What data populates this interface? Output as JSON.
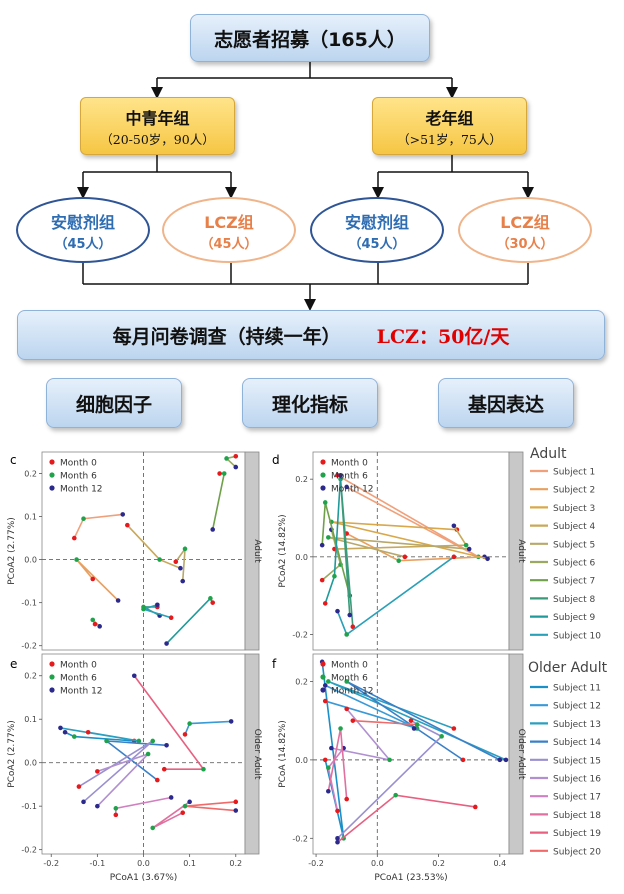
{
  "flow": {
    "recruit": "志愿者招募（165人）",
    "middle_group": {
      "title": "中青年组",
      "sub": "（20-50岁，90人）"
    },
    "old_group": {
      "title": "老年组",
      "sub": "（>51岁，75人）"
    },
    "arms": [
      {
        "name": "安慰剂组",
        "count": "（45人）"
      },
      {
        "name": "LCZ组",
        "count": "（45人）"
      },
      {
        "name": "安慰剂组",
        "count": "（45人）"
      },
      {
        "name": "LCZ组",
        "count": "（30人）"
      }
    ],
    "survey": "每月问卷调查（持续一年）",
    "dose": "LCZ：50亿/天",
    "outcomes": [
      "细胞因子",
      "理化指标",
      "基因表达"
    ]
  },
  "colors": {
    "month0": "#e41a1c",
    "month6": "#1fa34a",
    "month12": "#2b2a8c"
  },
  "chart_data": [
    {
      "type": "scatter",
      "panel": "c",
      "strip": "Adult",
      "xlabel": "",
      "ylabel": "PCoA2 (2.77%)",
      "xlim": [
        -0.22,
        0.22
      ],
      "ylim": [
        -0.21,
        0.25
      ],
      "yticks": [
        "-0.2",
        "-0.1",
        "0.0",
        "0.1",
        "0.2"
      ],
      "legend": [
        "Month 0",
        "Month 6",
        "Month 12"
      ],
      "subjects": [
        {
          "m0": [
            -0.15,
            0.05
          ],
          "m6": [
            -0.13,
            0.095
          ],
          "m12": [
            -0.045,
            0.105
          ]
        },
        {
          "m0": [
            -0.11,
            -0.045
          ],
          "m6": [
            -0.145,
            0.0
          ],
          "m12": [
            -0.055,
            -0.095
          ]
        },
        {
          "m0": [
            -0.105,
            -0.15
          ],
          "m6": [
            -0.11,
            -0.14
          ],
          "m12": [
            -0.095,
            -0.155
          ]
        },
        {
          "m0": [
            -0.035,
            0.08
          ],
          "m6": [
            0.035,
            0.0
          ],
          "m12": [
            0.08,
            -0.02
          ]
        },
        {
          "m0": [
            0.07,
            -0.005
          ],
          "m6": [
            0.09,
            0.025
          ],
          "m12": [
            0.085,
            -0.05
          ]
        },
        {
          "m0": [
            0.2,
            0.24
          ],
          "m6": [
            0.18,
            0.235
          ],
          "m12": [
            0.2,
            0.215
          ]
        },
        {
          "m0": [
            0.165,
            0.2
          ],
          "m6": [
            0.175,
            0.2
          ],
          "m12": [
            0.15,
            0.07
          ]
        },
        {
          "m0": [
            0.03,
            -0.11
          ],
          "m6": [
            0.0,
            -0.11
          ],
          "m12": [
            0.035,
            -0.13
          ]
        },
        {
          "m0": [
            0.15,
            -0.1
          ],
          "m6": [
            0.145,
            -0.09
          ],
          "m12": [
            0.05,
            -0.195
          ]
        },
        {
          "m0": [
            0.06,
            -0.135
          ],
          "m6": [
            0.0,
            -0.115
          ],
          "m12": [
            0.03,
            -0.105
          ]
        }
      ]
    },
    {
      "type": "scatter",
      "panel": "d",
      "strip": "Adult",
      "xlabel": "",
      "ylabel": "PCoA2 (14.82%)",
      "xlim": [
        -0.21,
        0.43
      ],
      "ylim": [
        -0.24,
        0.27
      ],
      "yticks": [
        "-0.2",
        "0.0",
        "0.2"
      ],
      "legend": [
        "Month 0",
        "Month 6",
        "Month 12"
      ],
      "subjects": [
        {
          "m0": [
            -0.13,
            0.21
          ],
          "m6": [
            0.33,
            0.0
          ],
          "m12": [
            -0.1,
            0.18
          ]
        },
        {
          "m0": [
            -0.1,
            0.06
          ],
          "m6": [
            0.07,
            -0.01
          ],
          "m12": [
            0.35,
            0.0
          ]
        },
        {
          "m0": [
            0.26,
            0.07
          ],
          "m6": [
            -0.15,
            0.09
          ],
          "m12": [
            0.36,
            -0.005
          ]
        },
        {
          "m0": [
            -0.14,
            0.02
          ],
          "m6": [
            0.29,
            0.03
          ],
          "m12": [
            0.25,
            0.08
          ]
        },
        {
          "m0": [
            0.09,
            0.0
          ],
          "m6": [
            -0.16,
            0.05
          ],
          "m12": [
            0.3,
            0.02
          ]
        },
        {
          "m0": [
            -0.18,
            -0.06
          ],
          "m6": [
            -0.12,
            -0.02
          ],
          "m12": [
            -0.15,
            0.07
          ]
        },
        {
          "m0": [
            -0.09,
            -0.1
          ],
          "m6": [
            -0.17,
            0.14
          ],
          "m12": [
            -0.18,
            0.03
          ]
        },
        {
          "m0": [
            -0.08,
            -0.18
          ],
          "m6": [
            -0.12,
            0.2
          ],
          "m12": [
            -0.09,
            -0.15
          ]
        },
        {
          "m0": [
            -0.17,
            -0.12
          ],
          "m6": [
            -0.14,
            -0.05
          ],
          "m12": [
            -0.12,
            0.21
          ]
        },
        {
          "m0": [
            0.25,
            0.0
          ],
          "m6": [
            -0.1,
            -0.2
          ],
          "m12": [
            -0.13,
            -0.14
          ]
        }
      ]
    },
    {
      "type": "scatter",
      "panel": "e",
      "strip": "Older Adult",
      "xlabel": "PCoA1 (3.67%)",
      "ylabel": "PCoA2 (2.77%)",
      "xlim": [
        -0.22,
        0.22
      ],
      "ylim": [
        -0.21,
        0.25
      ],
      "xticks": [
        "-0.2",
        "-0.1",
        "0.0",
        "0.1",
        "0.2"
      ],
      "yticks": [
        "-0.2",
        "-0.1",
        "0.0",
        "0.1",
        "0.2"
      ],
      "legend": [
        "Month 0",
        "Month 6",
        "Month 12"
      ],
      "subjects": [
        {
          "m0": [
            -0.02,
            0.05
          ],
          "m6": [
            -0.15,
            0.06
          ],
          "m12": [
            -0.17,
            0.07
          ]
        },
        {
          "m0": [
            0.09,
            0.065
          ],
          "m6": [
            0.1,
            0.09
          ],
          "m12": [
            0.19,
            0.095
          ]
        },
        {
          "m0": [
            -0.12,
            0.07
          ],
          "m6": [
            -0.01,
            0.05
          ],
          "m12": [
            -0.18,
            0.08
          ]
        },
        {
          "m0": [
            0.03,
            -0.04
          ],
          "m6": [
            -0.08,
            0.05
          ],
          "m12": [
            0.05,
            0.04
          ]
        },
        {
          "m0": [
            -0.14,
            -0.055
          ],
          "m6": [
            0.02,
            0.05
          ],
          "m12": [
            -0.13,
            -0.09
          ]
        },
        {
          "m0": [
            -0.1,
            -0.02
          ],
          "m6": [
            0.01,
            0.02
          ],
          "m12": [
            -0.1,
            -0.1
          ]
        },
        {
          "m0": [
            -0.06,
            -0.12
          ],
          "m6": [
            -0.06,
            -0.105
          ],
          "m12": [
            0.06,
            -0.08
          ]
        },
        {
          "m0": [
            0.085,
            -0.115
          ],
          "m6": [
            0.02,
            -0.15
          ],
          "m12": [
            0.1,
            -0.09
          ]
        },
        {
          "m0": [
            0.045,
            -0.015
          ],
          "m6": [
            0.13,
            -0.015
          ],
          "m12": [
            -0.02,
            0.2
          ]
        },
        {
          "m0": [
            0.2,
            -0.09
          ],
          "m6": [
            0.09,
            -0.1
          ],
          "m12": [
            0.2,
            -0.11
          ]
        }
      ]
    },
    {
      "type": "scatter",
      "panel": "f",
      "strip": "Older Adult",
      "xlabel": "PCoA1 (23.53%)",
      "ylabel": "PCoA (14.82%)",
      "xlim": [
        -0.21,
        0.43
      ],
      "ylim": [
        -0.24,
        0.27
      ],
      "xticks": [
        "-0.2",
        "0.0",
        "0.2",
        "0.4"
      ],
      "yticks": [
        "-0.2",
        "0.0",
        "0.2"
      ],
      "legend": [
        "Month 0",
        "Month 6",
        "Month 12"
      ],
      "subjects": [
        {
          "m0": [
            -0.17,
            0.0
          ],
          "m6": [
            -0.11,
            -0.2
          ],
          "m12": [
            -0.18,
            0.25
          ]
        },
        {
          "m0": [
            -0.17,
            0.15
          ],
          "m6": [
            0.13,
            0.08
          ],
          "m12": [
            -0.17,
            0.19
          ]
        },
        {
          "m0": [
            0.25,
            0.08
          ],
          "m6": [
            -0.16,
            0.2
          ],
          "m12": [
            0.42,
            0.0
          ]
        },
        {
          "m0": [
            0.28,
            0.0
          ],
          "m6": [
            -0.1,
            0.2
          ],
          "m12": [
            0.4,
            0.0
          ]
        },
        {
          "m0": [
            0.11,
            0.1
          ],
          "m6": [
            0.21,
            0.06
          ],
          "m12": [
            -0.13,
            -0.2
          ]
        },
        {
          "m0": [
            -0.1,
            0.13
          ],
          "m6": [
            0.04,
            0.0
          ],
          "m12": [
            -0.15,
            0.03
          ]
        },
        {
          "m0": [
            -0.13,
            -0.13
          ],
          "m6": [
            -0.16,
            -0.02
          ],
          "m12": [
            -0.11,
            0.03
          ]
        },
        {
          "m0": [
            -0.1,
            -0.1
          ],
          "m6": [
            -0.12,
            0.08
          ],
          "m12": [
            -0.16,
            -0.08
          ]
        },
        {
          "m0": [
            0.32,
            -0.12
          ],
          "m6": [
            0.06,
            -0.09
          ],
          "m12": [
            -0.13,
            -0.21
          ]
        },
        {
          "m0": [
            -0.08,
            0.1
          ],
          "m6": [
            0.13,
            0.09
          ],
          "m12": [
            0.12,
            0.08
          ]
        }
      ]
    }
  ],
  "legend_subjects": {
    "adult_title": "Adult",
    "adult": [
      "Subject 1",
      "Subject 2",
      "Subject 3",
      "Subject 4",
      "Subject 5",
      "Subject 6",
      "Subject 7",
      "Subject 8",
      "Subject 9",
      "Subject 10"
    ],
    "adult_colors": [
      "#f0a07a",
      "#e8a060",
      "#d8a84a",
      "#c8a85a",
      "#b8a86a",
      "#9aa860",
      "#6fa04a",
      "#3a9a7a",
      "#1f9a9a",
      "#2aa0b8"
    ],
    "older_title": "Older Adult",
    "older": [
      "Subject 11",
      "Subject 12",
      "Subject 13",
      "Subject 14",
      "Subject 15",
      "Subject 16",
      "Subject 17",
      "Subject 18",
      "Subject 19",
      "Subject 20"
    ],
    "older_colors": [
      "#1a8fc8",
      "#3a9ad6",
      "#2a9fc0",
      "#3a80c8",
      "#9a8fd0",
      "#b090d0",
      "#d080c0",
      "#e070a0",
      "#e86080",
      "#f06a6a"
    ]
  }
}
